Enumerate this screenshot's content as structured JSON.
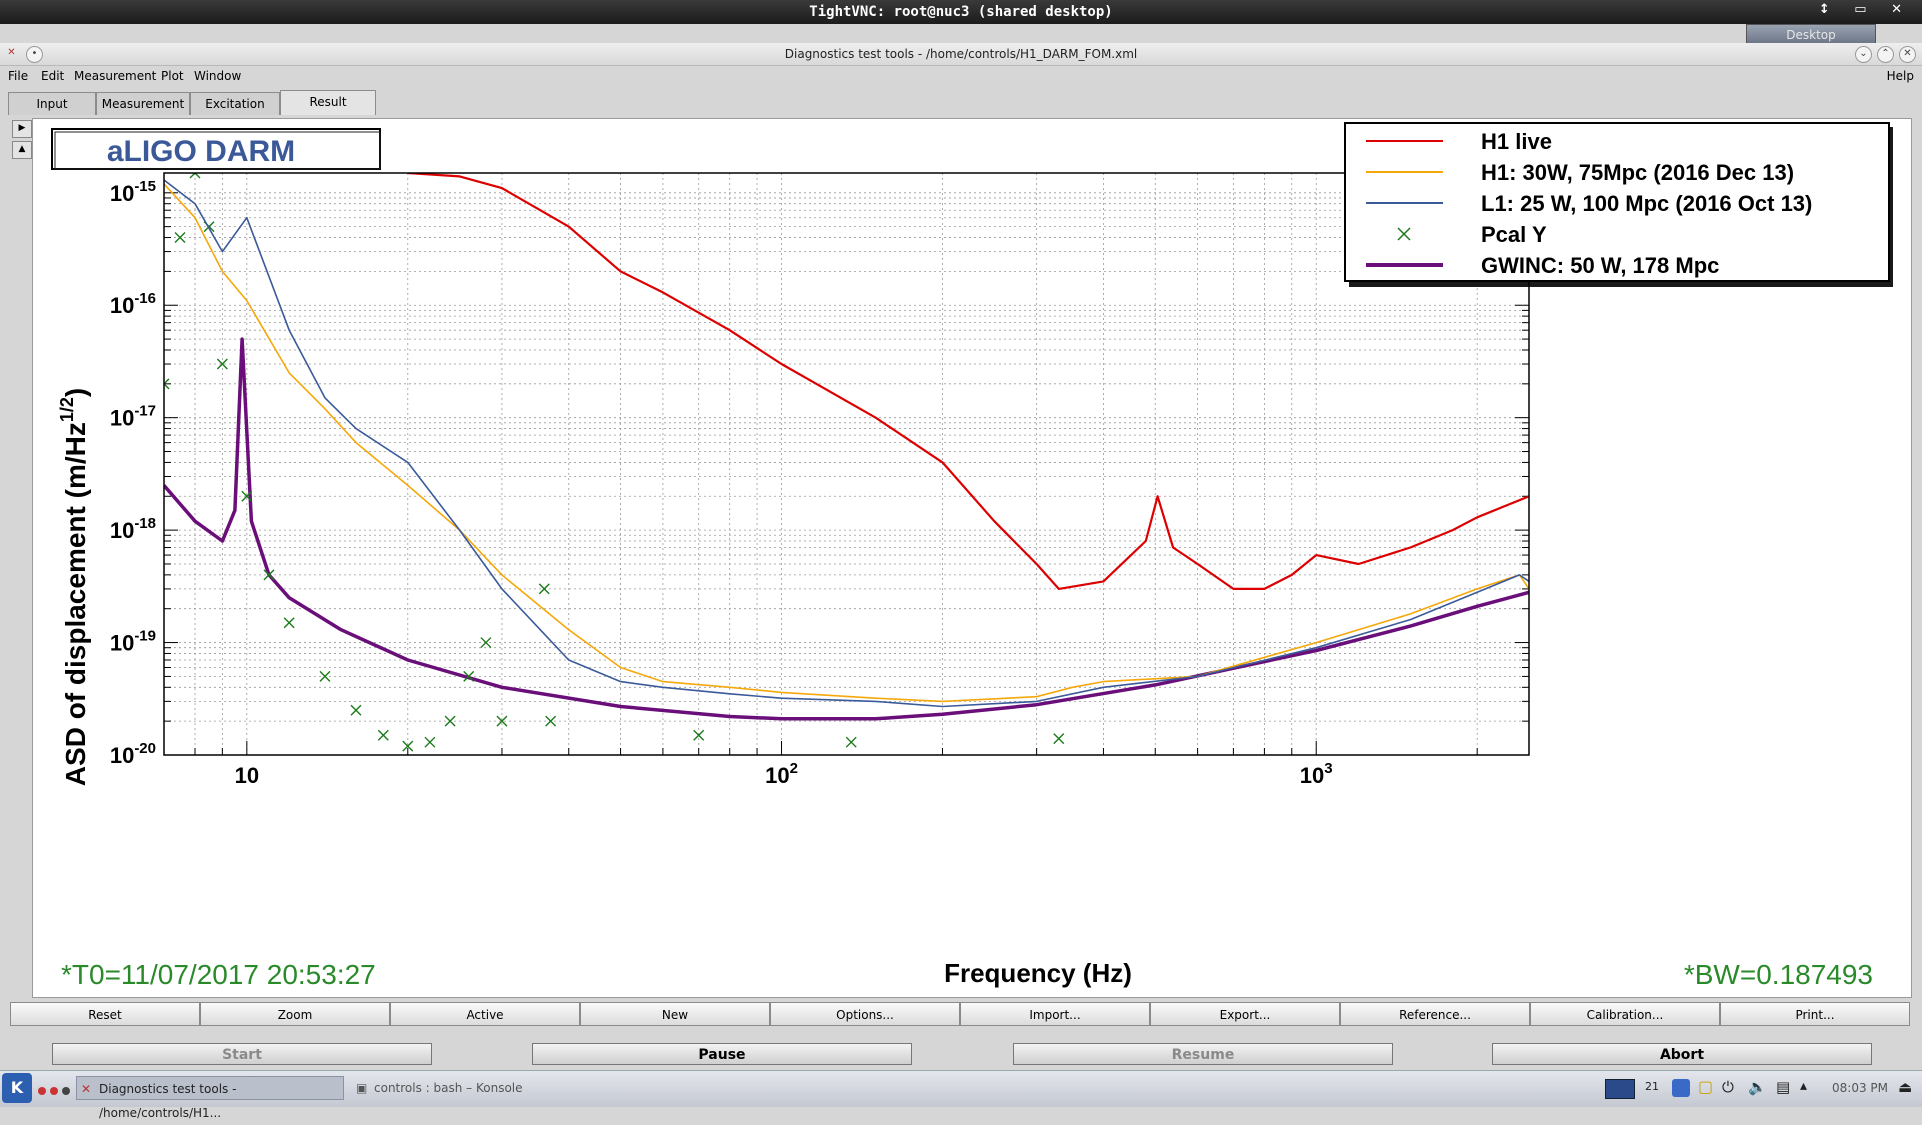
{
  "vnc": {
    "title": "TightVNC: root@nuc3 (shared desktop)",
    "controls": "↕ ▭ ✕",
    "desktop_label": "Desktop"
  },
  "app": {
    "title": "Diagnostics test tools - /home/controls/H1_DARM_FOM.xml",
    "menu": [
      "File",
      "Edit",
      "Measurement",
      "Plot",
      "Window"
    ],
    "help": "Help",
    "tabs": [
      "Input",
      "Measurement",
      "Excitation",
      "Result"
    ],
    "active_tab": "Result"
  },
  "plot": {
    "title_box": "aLIGO DARM",
    "t0": "*T0=11/07/2017 20:53:27",
    "bw": "*BW=0.187493",
    "colors": {
      "h1_live": "#dd0000",
      "h1_ref": "#f5a80a",
      "l1_ref": "#3a5a9a",
      "pcal": "#1a7a1a",
      "gwinc": "#6a0f7a",
      "title": "#3b5998"
    }
  },
  "chart_data": {
    "type": "line",
    "xlabel": "Frequency (Hz)",
    "ylabel": "ASD of displacement (m/Hz^{1/2})",
    "xscale": "log",
    "yscale": "log",
    "xlim": [
      7,
      2500
    ],
    "ylim": [
      1e-20,
      1.5e-15
    ],
    "x_ticks": [
      {
        "value": 10,
        "label": "10",
        "sup": ""
      },
      {
        "value": 100,
        "label": "10",
        "sup": "2"
      },
      {
        "value": 1000,
        "label": "10",
        "sup": "3"
      }
    ],
    "y_ticks": [
      {
        "value": 1e-15,
        "exp": "-15"
      },
      {
        "value": 1e-16,
        "exp": "-16"
      },
      {
        "value": 1e-17,
        "exp": "-17"
      },
      {
        "value": 1e-18,
        "exp": "-18"
      },
      {
        "value": 1e-19,
        "exp": "-19"
      },
      {
        "value": 1e-20,
        "exp": "-20"
      }
    ],
    "grid": true,
    "legend_position": "top-right",
    "series": [
      {
        "name": "H1 live",
        "color": "#dd0000",
        "x": [
          20,
          25,
          30,
          40,
          50,
          60,
          80,
          100,
          150,
          200,
          250,
          300,
          330,
          400,
          480,
          505,
          540,
          600,
          700,
          800,
          900,
          1000,
          1200,
          1500,
          1800,
          2000,
          2500
        ],
        "y": [
          1.5e-15,
          1.4e-15,
          1.1e-15,
          5e-16,
          2e-16,
          1.3e-16,
          6e-17,
          3e-17,
          1e-17,
          4e-18,
          1.2e-18,
          5e-19,
          3e-19,
          3.5e-19,
          8e-19,
          2e-18,
          7e-19,
          5e-19,
          3e-19,
          3e-19,
          4e-19,
          6e-19,
          5e-19,
          7e-19,
          1e-18,
          1.3e-18,
          2e-18
        ]
      },
      {
        "name": "H1: 30W, 75Mpc (2016 Dec 13)",
        "color": "#f5a80a",
        "x": [
          7,
          8,
          9,
          10,
          12,
          14,
          16,
          20,
          25,
          30,
          40,
          50,
          60,
          80,
          100,
          150,
          200,
          300,
          350,
          400,
          600,
          1000,
          1500,
          2000,
          2400,
          2500
        ],
        "y": [
          1.2e-15,
          6e-16,
          2e-16,
          1.1e-16,
          2.5e-17,
          1.2e-17,
          6e-18,
          2.5e-18,
          1e-18,
          4e-19,
          1.3e-19,
          6e-20,
          4.5e-20,
          4e-20,
          3.6e-20,
          3.2e-20,
          3e-20,
          3.3e-20,
          4e-20,
          4.5e-20,
          5e-20,
          1e-19,
          1.8e-19,
          3e-19,
          4e-19,
          3e-19
        ]
      },
      {
        "name": "L1: 25 W, 100 Mpc (2016 Oct 13)",
        "color": "#3a5a9a",
        "x": [
          7,
          8,
          9,
          10,
          12,
          14,
          16,
          20,
          25,
          30,
          40,
          50,
          60,
          80,
          100,
          150,
          200,
          300,
          400,
          600,
          1000,
          1500,
          2000,
          2400,
          2500
        ],
        "y": [
          1.3e-15,
          8e-16,
          3e-16,
          6e-16,
          6e-17,
          1.5e-17,
          8e-18,
          4e-18,
          1e-18,
          3e-19,
          7e-20,
          4.5e-20,
          4e-20,
          3.5e-20,
          3.2e-20,
          3e-20,
          2.7e-20,
          3e-20,
          4e-20,
          5e-20,
          9e-20,
          1.6e-19,
          2.8e-19,
          4e-19,
          3.5e-19
        ]
      },
      {
        "name": "Pcal Y",
        "color": "#1a7a1a",
        "marker": "x",
        "x": [
          7,
          7.5,
          8,
          8.5,
          9,
          10,
          11,
          12,
          14,
          16,
          18,
          20,
          22,
          24,
          26,
          28,
          30,
          36,
          37,
          70,
          135,
          330
        ],
        "y": [
          2e-17,
          4e-16,
          1.5e-15,
          5e-16,
          3e-17,
          2e-18,
          4e-19,
          1.5e-19,
          5e-20,
          2.5e-20,
          1.5e-20,
          1.2e-20,
          1.3e-20,
          2e-20,
          5e-20,
          1e-19,
          2e-20,
          3e-19,
          2e-20,
          1.5e-20,
          1.3e-20,
          1.4e-20
        ]
      },
      {
        "name": "GWINC: 50 W, 178 Mpc",
        "color": "#6a0f7a",
        "x": [
          7,
          8,
          9,
          9.5,
          9.8,
          10.2,
          11,
          12,
          15,
          20,
          30,
          50,
          80,
          100,
          150,
          200,
          300,
          500,
          1000,
          1500,
          2000,
          2500
        ],
        "y": [
          2.5e-18,
          1.2e-18,
          8e-19,
          1.5e-18,
          5e-17,
          1.2e-18,
          4e-19,
          2.5e-19,
          1.3e-19,
          7e-20,
          4e-20,
          2.7e-20,
          2.2e-20,
          2.1e-20,
          2.1e-20,
          2.3e-20,
          2.8e-20,
          4.2e-20,
          8.5e-20,
          1.4e-19,
          2.1e-19,
          2.8e-19
        ]
      }
    ]
  },
  "buttons_row1": [
    "Reset",
    "Zoom",
    "Active",
    "New",
    "Options...",
    "Import...",
    "Export...",
    "Reference...",
    "Calibration...",
    "Print..."
  ],
  "buttons_row2": [
    "Start",
    "Pause",
    "Resume",
    "Abort"
  ],
  "taskbar": {
    "tasks": [
      "Diagnostics test tools - /home/controls/H1...",
      "controls : bash – Konsole"
    ],
    "day": "21",
    "clock": "08:03 PM"
  }
}
